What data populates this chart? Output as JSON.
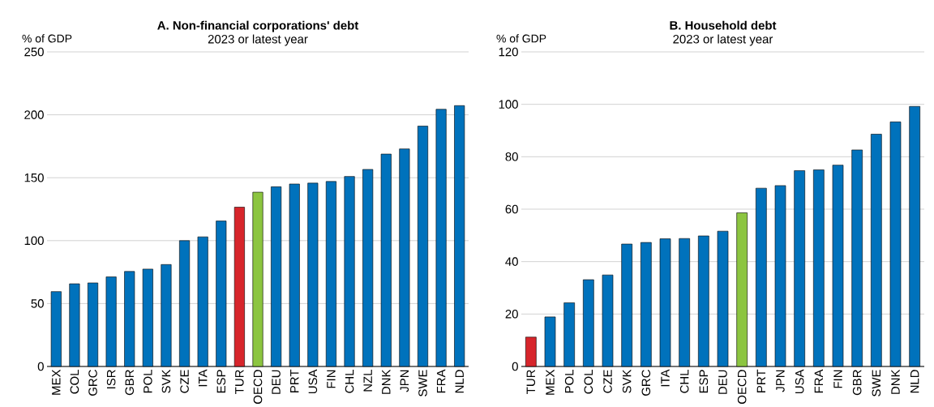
{
  "chart_data": [
    {
      "type": "bar",
      "title": "A. Non-financial corporations' debt",
      "subtitle": "2023 or latest year",
      "ylabel": "% of GDP",
      "categories": [
        "MEX",
        "COL",
        "GRC",
        "ISR",
        "GBR",
        "POL",
        "SVK",
        "CZE",
        "ITA",
        "ESP",
        "TUR",
        "OECD",
        "DEU",
        "PRT",
        "USA",
        "FIN",
        "CHL",
        "NZL",
        "DNK",
        "JPN",
        "SWE",
        "FRA",
        "NLD"
      ],
      "values": [
        59.5,
        65.7,
        66.4,
        71.2,
        75.5,
        77.4,
        81,
        100,
        103,
        115.6,
        126.6,
        138.5,
        142.8,
        145,
        145.7,
        147,
        151,
        156.6,
        168.8,
        172.9,
        191,
        204.4,
        207.3
      ],
      "colors": [
        "#0072bc",
        "#0072bc",
        "#0072bc",
        "#0072bc",
        "#0072bc",
        "#0072bc",
        "#0072bc",
        "#0072bc",
        "#0072bc",
        "#0072bc",
        "#d7252b",
        "#8cc540",
        "#0072bc",
        "#0072bc",
        "#0072bc",
        "#0072bc",
        "#0072bc",
        "#0072bc",
        "#0072bc",
        "#0072bc",
        "#0072bc",
        "#0072bc",
        "#0072bc"
      ],
      "ylim": [
        0,
        250
      ],
      "yticks": [
        0,
        50,
        100,
        150,
        200,
        250
      ],
      "grid": "y"
    },
    {
      "type": "bar",
      "title": "B. Household debt",
      "subtitle": "2023 or latest year",
      "ylabel": "% of GDP",
      "categories": [
        "TUR",
        "MEX",
        "POL",
        "COL",
        "CZE",
        "SVK",
        "GRC",
        "ITA",
        "CHL",
        "ESP",
        "DEU",
        "OECD",
        "PRT",
        "JPN",
        "USA",
        "FRA",
        "FIN",
        "GBR",
        "SWE",
        "DNK",
        "NLD"
      ],
      "values": [
        11.2,
        18.9,
        24.3,
        33.1,
        34.9,
        46.7,
        47.3,
        48.7,
        48.8,
        49.8,
        51.6,
        58.6,
        68,
        69,
        74.7,
        75,
        76.8,
        82.6,
        88.6,
        93.3,
        99.2
      ],
      "colors": [
        "#d7252b",
        "#0072bc",
        "#0072bc",
        "#0072bc",
        "#0072bc",
        "#0072bc",
        "#0072bc",
        "#0072bc",
        "#0072bc",
        "#0072bc",
        "#0072bc",
        "#8cc540",
        "#0072bc",
        "#0072bc",
        "#0072bc",
        "#0072bc",
        "#0072bc",
        "#0072bc",
        "#0072bc",
        "#0072bc",
        "#0072bc"
      ],
      "ylim": [
        0,
        120
      ],
      "yticks": [
        0,
        20,
        40,
        60,
        80,
        100,
        120
      ],
      "grid": "y"
    }
  ]
}
